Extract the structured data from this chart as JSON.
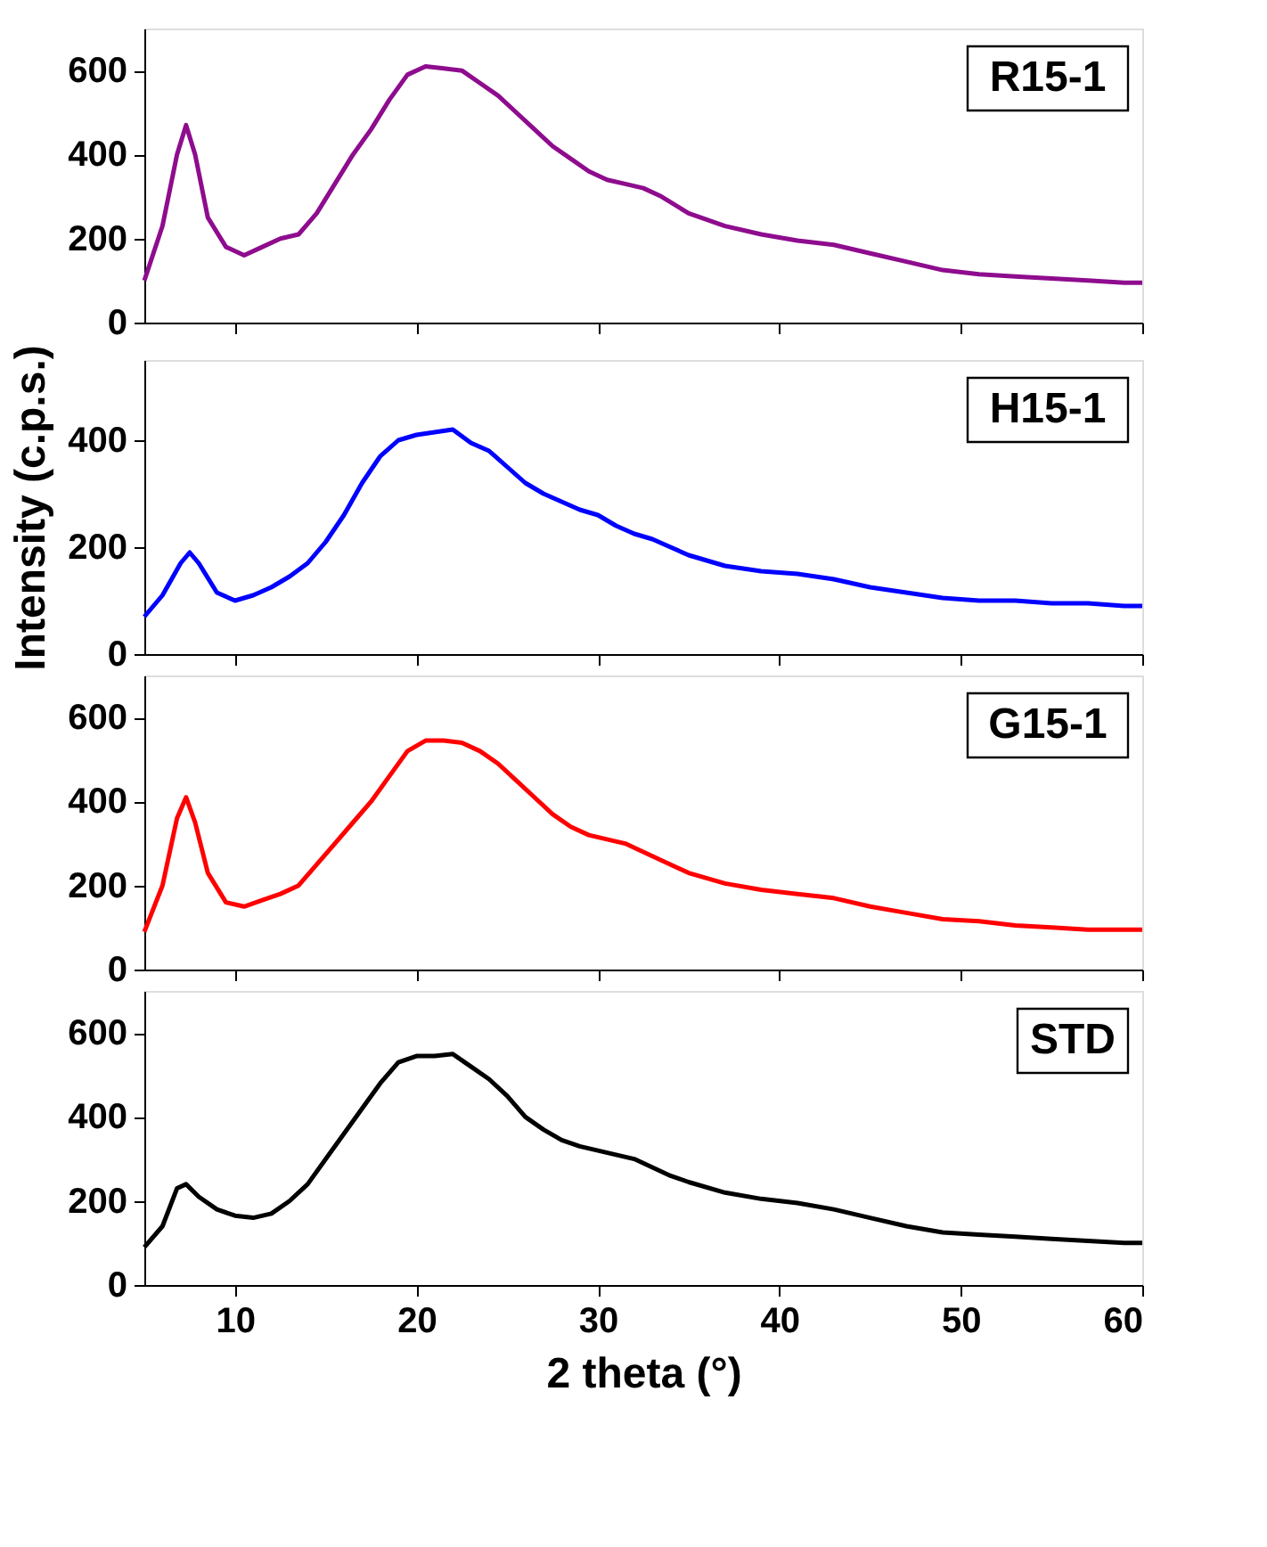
{
  "chart_data": [
    {
      "type": "line",
      "xlim": [
        5,
        60
      ],
      "xticks": [
        10,
        20,
        30,
        40,
        50,
        60
      ],
      "ylim": [
        0,
        700
      ],
      "yticks": [
        0,
        200,
        400,
        600
      ],
      "tick_labels": "y",
      "legend": false,
      "grid": false,
      "x": [
        5,
        6,
        6.8,
        7.3,
        7.8,
        8.5,
        9.5,
        10.5,
        11.5,
        12.5,
        13.5,
        14.5,
        15.5,
        16.5,
        17.5,
        18.5,
        19.5,
        20.5,
        21.5,
        22.5,
        23.5,
        24.5,
        25.5,
        26.5,
        27.5,
        28.5,
        29.5,
        30.5,
        31.5,
        32.5,
        33.5,
        35,
        37,
        39,
        41,
        43,
        45,
        47,
        49,
        51,
        53,
        55,
        57,
        59,
        60
      ],
      "series": [
        {
          "name": "R15-1",
          "color": "#8e0c8e",
          "values": [
            100,
            230,
            400,
            470,
            400,
            250,
            180,
            160,
            180,
            200,
            210,
            260,
            330,
            400,
            460,
            530,
            590,
            610,
            605,
            600,
            570,
            540,
            500,
            460,
            420,
            390,
            360,
            340,
            330,
            320,
            300,
            260,
            230,
            210,
            195,
            185,
            165,
            145,
            125,
            115,
            110,
            105,
            100,
            95,
            95
          ]
        }
      ]
    },
    {
      "type": "line",
      "xlim": [
        5,
        60
      ],
      "xticks": [
        10,
        20,
        30,
        40,
        50,
        60
      ],
      "ylim": [
        0,
        550
      ],
      "yticks": [
        0,
        200,
        400
      ],
      "tick_labels": "y",
      "legend": false,
      "grid": false,
      "ylabel": "Intensity (c.p.s.)",
      "x": [
        5,
        6,
        7,
        7.5,
        8,
        9,
        10,
        11,
        12,
        13,
        14,
        15,
        16,
        17,
        18,
        19,
        20,
        21,
        22,
        23,
        24,
        25,
        26,
        27,
        28,
        29,
        30,
        31,
        32,
        33,
        34,
        35,
        37,
        39,
        41,
        43,
        45,
        47,
        49,
        51,
        53,
        55,
        57,
        59,
        60
      ],
      "series": [
        {
          "name": "H15-1",
          "color": "#0000ff",
          "values": [
            70,
            110,
            170,
            190,
            170,
            115,
            100,
            110,
            125,
            145,
            170,
            210,
            260,
            320,
            370,
            400,
            410,
            415,
            420,
            395,
            380,
            350,
            320,
            300,
            285,
            270,
            260,
            240,
            225,
            215,
            200,
            185,
            165,
            155,
            150,
            140,
            125,
            115,
            105,
            100,
            100,
            95,
            95,
            90,
            90
          ]
        }
      ]
    },
    {
      "type": "line",
      "xlim": [
        5,
        60
      ],
      "xticks": [
        10,
        20,
        30,
        40,
        50,
        60
      ],
      "ylim": [
        0,
        700
      ],
      "yticks": [
        0,
        200,
        400,
        600
      ],
      "tick_labels": "y",
      "legend": false,
      "grid": false,
      "x": [
        5,
        6,
        6.8,
        7.3,
        7.8,
        8.5,
        9.5,
        10.5,
        11.5,
        12.5,
        13.5,
        14.5,
        15.5,
        16.5,
        17.5,
        18.5,
        19.5,
        20.5,
        21.5,
        22.5,
        23.5,
        24.5,
        25.5,
        26.5,
        27.5,
        28.5,
        29.5,
        30.5,
        31.5,
        32.5,
        33.5,
        35,
        37,
        39,
        41,
        43,
        45,
        47,
        49,
        51,
        53,
        55,
        57,
        59,
        60
      ],
      "series": [
        {
          "name": "G15-1",
          "color": "#ff0000",
          "values": [
            90,
            200,
            360,
            410,
            350,
            230,
            160,
            150,
            165,
            180,
            200,
            250,
            300,
            350,
            400,
            460,
            520,
            545,
            545,
            540,
            520,
            490,
            450,
            410,
            370,
            340,
            320,
            310,
            300,
            280,
            260,
            230,
            205,
            190,
            180,
            170,
            150,
            135,
            120,
            115,
            105,
            100,
            95,
            95,
            95
          ]
        }
      ]
    },
    {
      "type": "line",
      "xlim": [
        5,
        60
      ],
      "xticks": [
        10,
        20,
        30,
        40,
        50,
        60
      ],
      "ylim": [
        0,
        700
      ],
      "yticks": [
        0,
        200,
        400,
        600
      ],
      "legend": false,
      "grid": false,
      "xlabel": "2 theta (°)",
      "x": [
        5,
        6,
        6.8,
        7.3,
        8,
        9,
        10,
        11,
        12,
        13,
        14,
        15,
        16,
        17,
        18,
        19,
        20,
        21,
        22,
        23,
        24,
        25,
        26,
        27,
        28,
        29,
        30,
        31,
        32,
        33,
        34,
        35,
        37,
        39,
        41,
        43,
        45,
        47,
        49,
        51,
        53,
        55,
        57,
        59,
        60
      ],
      "series": [
        {
          "name": "STD",
          "color": "#000000",
          "values": [
            90,
            140,
            230,
            240,
            210,
            180,
            165,
            160,
            170,
            200,
            240,
            300,
            360,
            420,
            480,
            530,
            545,
            545,
            550,
            520,
            490,
            450,
            400,
            370,
            345,
            330,
            320,
            310,
            300,
            280,
            260,
            245,
            220,
            205,
            195,
            180,
            160,
            140,
            125,
            120,
            115,
            110,
            105,
            100,
            100
          ]
        }
      ]
    }
  ]
}
